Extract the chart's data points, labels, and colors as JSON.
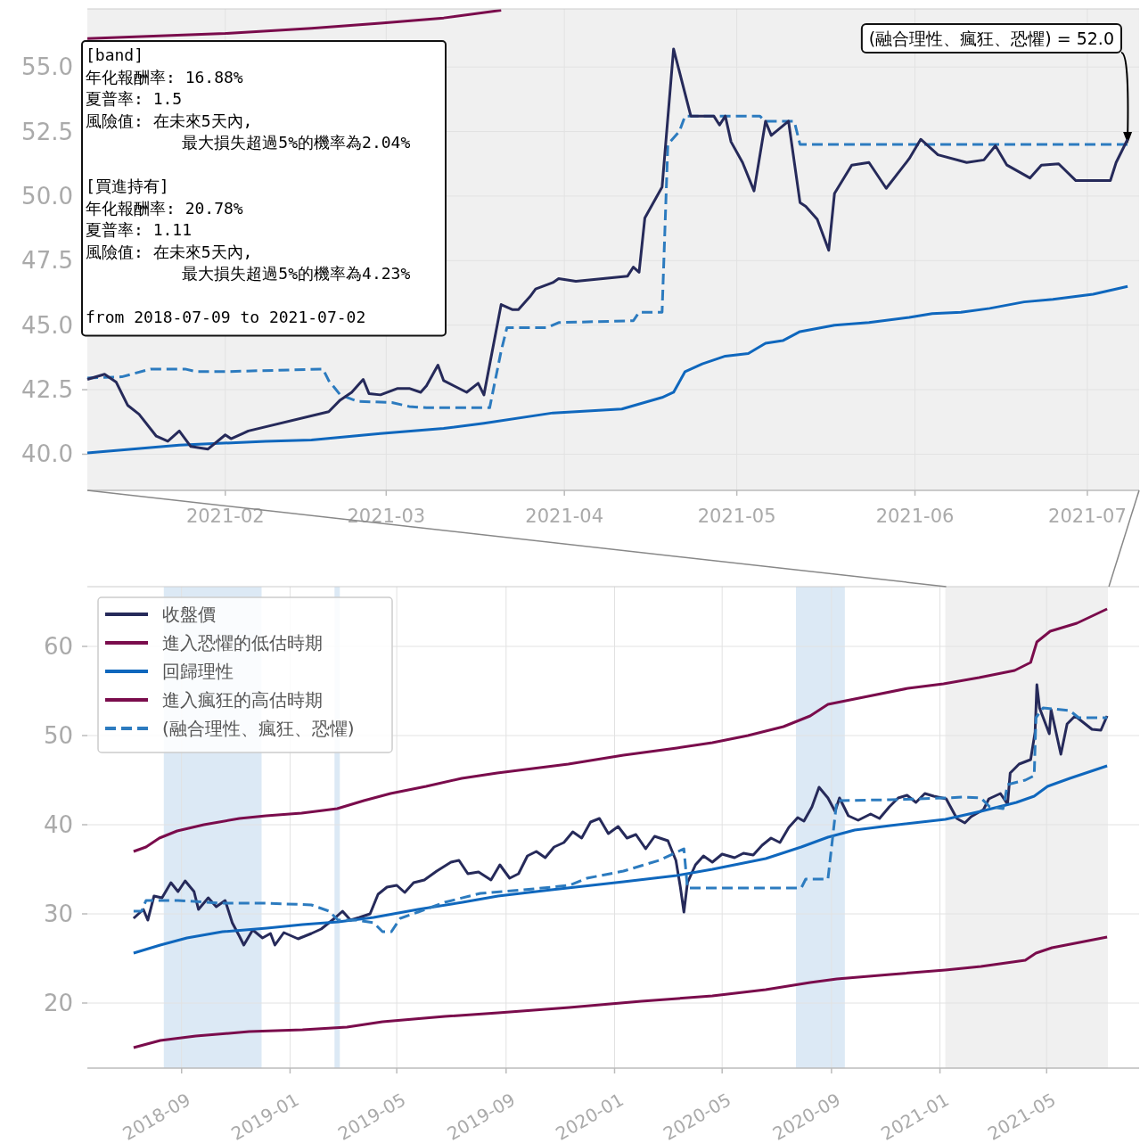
{
  "chart_data": [
    {
      "type": "line",
      "xlim": [
        "2021-01-08",
        "2021-07-10"
      ],
      "xticks": [
        "2021-02",
        "2021-03",
        "2021-04",
        "2021-05",
        "2021-06",
        "2021-07"
      ],
      "ylim": [
        38.6,
        57.25
      ],
      "yticks": [
        {
          "value": 40,
          "label": "40.0"
        },
        {
          "value": 42.5,
          "label": "42.5"
        },
        {
          "value": 45,
          "label": "45.0"
        },
        {
          "value": 47.5,
          "label": "47.5"
        },
        {
          "value": 50,
          "label": "50.0"
        },
        {
          "value": 52.5,
          "label": "52.5"
        },
        {
          "value": 55,
          "label": "55.0"
        }
      ],
      "grid": true,
      "series": [
        {
          "color": "#7a0c4c",
          "x": [
            "2021-01-08",
            "2021-02-01",
            "2021-02-16",
            "2021-02-28",
            "2021-03-11",
            "2021-03-21"
          ],
          "values": [
            56.1,
            56.3,
            56.5,
            56.7,
            56.9,
            57.2
          ]
        },
        {
          "color": "#0f67bd",
          "x": [
            "2021-01-08",
            "2021-01-24",
            "2021-02-08",
            "2021-02-16",
            "2021-02-28",
            "2021-03-11",
            "2021-03-18",
            "2021-03-30",
            "2021-04-11",
            "2021-04-18",
            "2021-04-20",
            "2021-04-22",
            "2021-04-25",
            "2021-04-29",
            "2021-05-03",
            "2021-05-06",
            "2021-05-09",
            "2021-05-12",
            "2021-05-18",
            "2021-05-24",
            "2021-05-31",
            "2021-06-04",
            "2021-06-09",
            "2021-06-14",
            "2021-06-20",
            "2021-06-25",
            "2021-07-02",
            "2021-07-08"
          ],
          "values": [
            40.05,
            40.35,
            40.5,
            40.55,
            40.8,
            41.0,
            41.2,
            41.6,
            41.75,
            42.2,
            42.4,
            43.2,
            43.5,
            43.8,
            43.9,
            44.3,
            44.4,
            44.75,
            45.0,
            45.1,
            45.3,
            45.45,
            45.5,
            45.65,
            45.9,
            46.0,
            46.2,
            46.5
          ]
        },
        {
          "color": "#2c7bbf",
          "line_style": "dashed",
          "x": [
            "2021-01-08",
            "2021-01-14",
            "2021-01-19",
            "2021-01-25",
            "2021-01-27",
            "2021-02-01",
            "2021-02-18",
            "2021-02-19",
            "2021-02-21",
            "2021-02-24",
            "2021-03-02",
            "2021-03-05",
            "2021-03-08",
            "2021-03-19",
            "2021-03-21",
            "2021-03-22",
            "2021-03-29",
            "2021-03-31",
            "2021-04-13",
            "2021-04-14",
            "2021-04-18",
            "2021-04-19",
            "2021-04-21",
            "2021-04-22",
            "2021-05-05",
            "2021-05-06",
            "2021-05-11",
            "2021-05-12",
            "2021-07-08"
          ],
          "values": [
            42.95,
            43.0,
            43.3,
            43.3,
            43.2,
            43.2,
            43.3,
            42.85,
            42.3,
            42.05,
            42.0,
            41.85,
            41.8,
            41.8,
            44.0,
            44.9,
            44.9,
            45.1,
            45.17,
            45.5,
            45.5,
            52.0,
            52.5,
            53.1,
            53.1,
            52.9,
            52.9,
            52.0,
            52.0
          ]
        },
        {
          "color": "#262a5a",
          "x": [
            "2021-01-08",
            "2021-01-11",
            "2021-01-13",
            "2021-01-15",
            "2021-01-17",
            "2021-01-20",
            "2021-01-22",
            "2021-01-24",
            "2021-01-26",
            "2021-01-29",
            "2021-02-01",
            "2021-02-02",
            "2021-02-04",
            "2021-02-05",
            "2021-02-19",
            "2021-02-21",
            "2021-02-23",
            "2021-02-25",
            "2021-02-26",
            "2021-02-28",
            "2021-03-03",
            "2021-03-05",
            "2021-03-07",
            "2021-03-08",
            "2021-03-10",
            "2021-03-11",
            "2021-03-15",
            "2021-03-17",
            "2021-03-18",
            "2021-03-21",
            "2021-03-23",
            "2021-03-24",
            "2021-03-26",
            "2021-03-27",
            "2021-03-30",
            "2021-03-31",
            "2021-04-03",
            "2021-04-12",
            "2021-04-13",
            "2021-04-14",
            "2021-04-15",
            "2021-04-18",
            "2021-04-20",
            "2021-04-23",
            "2021-04-27",
            "2021-04-28",
            "2021-04-29",
            "2021-04-30",
            "2021-05-02",
            "2021-05-04",
            "2021-05-06",
            "2021-05-07",
            "2021-05-10",
            "2021-05-12",
            "2021-05-13",
            "2021-05-15",
            "2021-05-17",
            "2021-05-18",
            "2021-05-21",
            "2021-05-24",
            "2021-05-27",
            "2021-05-31",
            "2021-06-02",
            "2021-06-05",
            "2021-06-10",
            "2021-06-13",
            "2021-06-15",
            "2021-06-17",
            "2021-06-21",
            "2021-06-23",
            "2021-06-26",
            "2021-06-29",
            "2021-07-01",
            "2021-07-05",
            "2021-07-06",
            "2021-07-08"
          ],
          "values": [
            42.9,
            43.1,
            42.8,
            41.9,
            41.55,
            40.7,
            40.5,
            40.9,
            40.3,
            40.2,
            40.75,
            40.6,
            40.8,
            40.9,
            41.65,
            42.1,
            42.4,
            42.9,
            42.35,
            42.3,
            42.55,
            42.55,
            42.4,
            42.65,
            43.45,
            42.85,
            42.4,
            42.75,
            42.3,
            45.8,
            45.6,
            45.6,
            46.1,
            46.4,
            46.65,
            46.8,
            46.7,
            46.9,
            47.25,
            47.05,
            49.15,
            50.35,
            55.7,
            53.1,
            53.1,
            52.75,
            53.1,
            52.1,
            51.3,
            50.2,
            52.9,
            52.35,
            52.9,
            49.75,
            49.6,
            49.1,
            47.9,
            50.1,
            51.2,
            51.3,
            50.3,
            51.45,
            52.2,
            51.6,
            51.3,
            51.4,
            51.95,
            51.2,
            50.7,
            51.2,
            51.25,
            50.6,
            50.6,
            50.6,
            51.3,
            52.2
          ]
        }
      ],
      "annotations": [
        "[band]\n年化報酬率: 16.88%\n夏普率: 1.5\n風險值: 在未來5天內,\n          最大損失超過5%的機率為2.04%\n\n[買進持有]\n年化報酬率: 20.78%\n夏普率: 1.11\n風險值: 在未來5天內,\n          最大損失超過5%的機率為4.23%\n\nfrom 2018-07-09 to 2021-07-02",
        {
          "text": "(融合理性、瘋狂、恐懼) = 52.0",
          "x": "2021-07-08",
          "y": 52.0
        }
      ]
    },
    {
      "type": "line",
      "xlim": [
        "2018-05-18",
        "2021-08-13"
      ],
      "xticks": [
        "2018-09",
        "2019-01",
        "2019-05",
        "2019-09",
        "2020-01",
        "2020-05",
        "2020-09",
        "2021-01",
        "2021-05"
      ],
      "ylim": [
        12.7,
        66.7
      ],
      "yticks": [
        20,
        30,
        40,
        50,
        60
      ],
      "grid": true,
      "legend": "top left",
      "bands": [
        {
          "axis": "x",
          "from": "2018-08-12",
          "to": "2018-11-30",
          "color": "#dce9f5"
        },
        {
          "axis": "x",
          "from": "2019-02-20",
          "to": "2019-02-26",
          "color": "#dce9f5"
        },
        {
          "axis": "x",
          "from": "2020-07-23",
          "to": "2020-09-16",
          "color": "#dce9f5"
        },
        {
          "axis": "x",
          "from": "2021-01-07",
          "to": "2021-07-09",
          "color": "#f0f0f0"
        }
      ],
      "series": [
        {
          "name": "收盤價",
          "color": "#262a5a",
          "x": [
            "2018-07-09",
            "2018-07-20",
            "2018-07-25",
            "2018-08-01",
            "2018-08-10",
            "2018-08-20",
            "2018-08-28",
            "2018-09-05",
            "2018-09-15",
            "2018-09-20",
            "2018-10-01",
            "2018-10-10",
            "2018-10-20",
            "2018-10-28",
            "2018-11-05",
            "2018-11-10",
            "2018-11-20",
            "2018-12-01",
            "2018-12-10",
            "2018-12-15",
            "2018-12-25",
            "2019-01-10",
            "2019-01-25",
            "2019-02-05",
            "2019-02-20",
            "2019-03-01",
            "2019-03-10",
            "2019-03-20",
            "2019-04-01",
            "2019-04-10",
            "2019-04-20",
            "2019-05-01",
            "2019-05-10",
            "2019-05-20",
            "2019-06-01",
            "2019-06-15",
            "2019-07-01",
            "2019-07-10",
            "2019-07-20",
            "2019-08-01",
            "2019-08-15",
            "2019-08-25",
            "2019-09-05",
            "2019-09-15",
            "2019-09-25",
            "2019-10-05",
            "2019-10-15",
            "2019-10-25",
            "2019-11-05",
            "2019-11-15",
            "2019-11-25",
            "2019-12-05",
            "2019-12-15",
            "2019-12-25",
            "2020-01-05",
            "2020-01-15",
            "2020-01-25",
            "2020-02-05",
            "2020-02-15",
            "2020-03-01",
            "2020-03-10",
            "2020-03-15",
            "2020-03-19",
            "2020-03-23",
            "2020-04-01",
            "2020-04-10",
            "2020-04-20",
            "2020-05-01",
            "2020-05-15",
            "2020-05-25",
            "2020-06-05",
            "2020-06-15",
            "2020-06-25",
            "2020-07-05",
            "2020-07-15",
            "2020-07-25",
            "2020-08-01",
            "2020-08-10",
            "2020-08-18",
            "2020-08-28",
            "2020-09-05",
            "2020-09-10",
            "2020-09-20",
            "2020-10-01",
            "2020-10-15",
            "2020-10-25",
            "2020-11-05",
            "2020-11-15",
            "2020-11-25",
            "2020-12-05",
            "2020-12-15",
            "2020-12-25",
            "2021-01-08",
            "2021-01-20",
            "2021-01-29",
            "2021-02-05",
            "2021-02-19",
            "2021-02-25",
            "2021-03-10",
            "2021-03-18",
            "2021-03-21",
            "2021-03-31",
            "2021-04-13",
            "2021-04-18",
            "2021-04-20",
            "2021-04-23",
            "2021-05-04",
            "2021-05-06",
            "2021-05-17",
            "2021-05-24",
            "2021-06-02",
            "2021-06-21",
            "2021-07-01",
            "2021-07-08"
          ],
          "values": [
            29.5,
            30.5,
            29.3,
            32,
            31.8,
            33.5,
            32.5,
            33.7,
            32.5,
            30.5,
            31.8,
            30.8,
            31.5,
            29,
            27.5,
            26.5,
            28.2,
            27.3,
            27.8,
            26.5,
            27.9,
            27.2,
            27.8,
            28.3,
            29.5,
            30.3,
            29.3,
            29.6,
            30.0,
            32.2,
            33.0,
            33.2,
            32.4,
            33.5,
            33.8,
            34.8,
            35.8,
            36.0,
            34.5,
            34.7,
            33.8,
            35.5,
            34.0,
            34.5,
            36.5,
            37.0,
            36.3,
            37.5,
            38.0,
            39.2,
            38.5,
            40.3,
            40.7,
            39.0,
            39.8,
            38.5,
            38.9,
            37.3,
            38.7,
            38.2,
            36.0,
            33.0,
            30.2,
            33.5,
            35.5,
            36.5,
            35.8,
            36.7,
            36.3,
            36.8,
            36.6,
            37.7,
            38.5,
            38.0,
            39.7,
            40.8,
            40.4,
            42.0,
            44.2,
            43.0,
            41.5,
            43.0,
            41.0,
            40.5,
            41.2,
            40.7,
            42.0,
            43.0,
            43.3,
            42.5,
            43.5,
            43.2,
            42.9,
            40.7,
            40.2,
            40.9,
            41.7,
            42.9,
            43.5,
            42.3,
            45.8,
            46.8,
            47.3,
            50.4,
            55.7,
            53.1,
            50.2,
            52.9,
            47.9,
            51.3,
            52.2,
            50.7,
            50.6,
            52.2
          ]
        },
        {
          "name": "進入恐懼的低估時期",
          "color": "#7a0c4c",
          "x": [
            "2018-07-09",
            "2018-08-08",
            "2018-09-17",
            "2018-11-16",
            "2019-01-15",
            "2019-03-06",
            "2019-04-15",
            "2019-06-24",
            "2019-08-23",
            "2019-11-11",
            "2020-01-31",
            "2020-04-20",
            "2020-06-19",
            "2020-08-08",
            "2020-09-07",
            "2020-11-06",
            "2021-01-07",
            "2021-02-16",
            "2021-04-07",
            "2021-04-19",
            "2021-05-07",
            "2021-07-08"
          ],
          "values": [
            15.0,
            15.8,
            16.3,
            16.8,
            17.0,
            17.3,
            17.9,
            18.5,
            18.9,
            19.5,
            20.2,
            20.8,
            21.5,
            22.3,
            22.7,
            23.2,
            23.7,
            24.1,
            24.8,
            25.6,
            26.2,
            27.4
          ]
        },
        {
          "name": "回歸理性",
          "color": "#0f67bd",
          "x": [
            "2018-07-09",
            "2018-08-08",
            "2018-09-07",
            "2018-10-17",
            "2018-12-06",
            "2019-01-15",
            "2019-02-24",
            "2019-04-05",
            "2019-05-25",
            "2019-07-14",
            "2019-08-23",
            "2019-10-22",
            "2020-01-11",
            "2020-03-11",
            "2020-04-20",
            "2020-06-19",
            "2020-07-29",
            "2020-08-28",
            "2020-09-27",
            "2020-11-06",
            "2021-01-07",
            "2021-02-16",
            "2021-03-28",
            "2021-04-17",
            "2021-05-02",
            "2021-05-27",
            "2021-07-08"
          ],
          "values": [
            25.6,
            26.5,
            27.3,
            28.0,
            28.4,
            28.8,
            29.1,
            29.6,
            30.5,
            31.3,
            32.0,
            32.7,
            33.6,
            34.3,
            35.0,
            36.2,
            37.5,
            38.6,
            39.4,
            39.9,
            40.6,
            41.5,
            42.5,
            43.2,
            44.3,
            45.2,
            46.6
          ]
        },
        {
          "name": "進入瘋狂的高估時期",
          "color": "#7a0c4c",
          "x": [
            "2018-07-09",
            "2018-07-23",
            "2018-08-07",
            "2018-08-27",
            "2018-09-26",
            "2018-11-05",
            "2018-12-05",
            "2019-01-14",
            "2019-02-23",
            "2019-03-25",
            "2019-04-24",
            "2019-06-03",
            "2019-07-13",
            "2019-08-22",
            "2019-10-01",
            "2019-11-10",
            "2020-01-11",
            "2020-03-11",
            "2020-04-20",
            "2020-05-30",
            "2020-07-09",
            "2020-08-08",
            "2020-08-28",
            "2020-10-07",
            "2020-11-26",
            "2021-01-05",
            "2021-02-14",
            "2021-03-26",
            "2021-04-13",
            "2021-04-20",
            "2021-05-05",
            "2021-06-04",
            "2021-07-08"
          ],
          "values": [
            37.0,
            37.5,
            38.5,
            39.3,
            40.0,
            40.7,
            41.0,
            41.3,
            41.8,
            42.7,
            43.5,
            44.3,
            45.2,
            45.8,
            46.3,
            46.8,
            47.8,
            48.6,
            49.2,
            50.0,
            51.0,
            52.2,
            53.5,
            54.3,
            55.3,
            55.8,
            56.5,
            57.3,
            58.2,
            60.5,
            61.7,
            62.6,
            64.2
          ]
        },
        {
          "name": "(融合理性、瘋狂、恐懼)",
          "color": "#2c7bbf",
          "line_style": "dashed",
          "x": [
            "2018-07-09",
            "2018-07-18",
            "2018-07-23",
            "2018-08-28",
            "2018-10-17",
            "2018-12-06",
            "2019-01-25",
            "2019-02-14",
            "2019-02-24",
            "2019-03-16",
            "2019-04-05",
            "2019-04-15",
            "2019-04-25",
            "2019-05-05",
            "2019-05-25",
            "2019-06-24",
            "2019-08-03",
            "2019-10-02",
            "2019-11-11",
            "2019-12-01",
            "2020-01-11",
            "2020-02-20",
            "2020-03-19",
            "2020-03-23",
            "2020-04-20",
            "2020-07-29",
            "2020-08-03",
            "2020-08-28",
            "2020-09-07",
            "2020-11-06",
            "2021-01-07",
            "2021-01-27",
            "2021-02-16",
            "2021-02-26",
            "2021-03-13",
            "2021-03-18",
            "2021-04-07",
            "2021-04-17",
            "2021-04-19",
            "2021-04-27",
            "2021-05-27",
            "2021-06-06",
            "2021-07-08"
          ],
          "values": [
            30.3,
            30.3,
            31.5,
            31.5,
            31.2,
            31.2,
            31.0,
            30.3,
            29.3,
            29.3,
            29.0,
            28.0,
            28.0,
            29.5,
            30.2,
            31.3,
            32.3,
            32.8,
            33.2,
            34.0,
            34.8,
            36.0,
            37.3,
            32.9,
            32.9,
            32.9,
            33.9,
            33.9,
            42.7,
            42.8,
            43.0,
            43.1,
            43.0,
            42.0,
            41.8,
            44.5,
            45.0,
            45.5,
            52.0,
            53.1,
            52.8,
            52.0,
            52.0
          ]
        }
      ]
    }
  ]
}
